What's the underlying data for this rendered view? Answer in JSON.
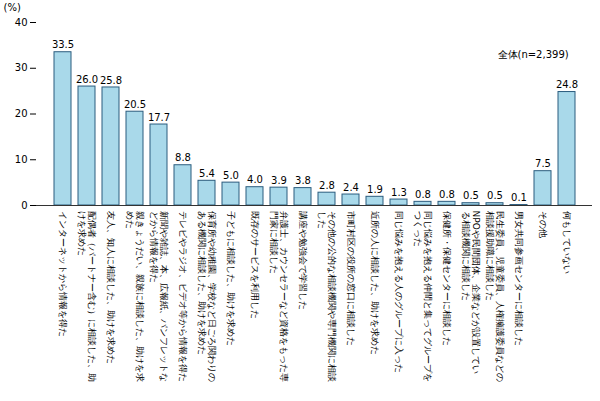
{
  "chart_data": {
    "type": "bar",
    "ylabel": "(%)",
    "annotations": [
      "全体(n=2,399)"
    ],
    "categories": [
      "インターネットから情報を得た",
      "配偶者（パートナー含む）に相談した、助けを求めた",
      "友人、知人に相談した、助けを求めた",
      "親きょうだい、親族に相談した、助けを求めた",
      "新聞や雑誌、本、広報紙、パンフレットなどから情報を得た",
      "テレビやラジオ、ビデオ等から情報を得た",
      "保育所や幼稚園、学校など日ごろ関わりのある機関に相談した、助けを求めた",
      "子どもに相談した、助けを求めた",
      "既存のサービスを利用した",
      "弁護士、カウンセラーなど資格をもった専門家に相談した",
      "講座や勉強会で学習した",
      "その他の公的な相談機関や専門機関に相談した",
      "市町村区の役所の窓口に相談した",
      "近所の人に相談した、助けを求めた",
      "同じ悩みを抱える人のグループに入った",
      "同じ悩みを抱える仲間と集ってグループをつくった",
      "保健所・保健センターに相談した",
      "NPOや民間団体、企業などが設置している相談機関に相談した",
      "民生委員、児童委員、人権擁護委員などの相談援助職に相談した",
      "男女共同参画センターに相談した",
      "その他",
      "何もしていない"
    ],
    "values": [
      33.5,
      26.0,
      25.8,
      20.5,
      17.7,
      8.8,
      5.4,
      5.0,
      4.0,
      3.9,
      3.8,
      2.8,
      2.4,
      1.9,
      1.3,
      0.8,
      0.8,
      0.5,
      0.5,
      0.1,
      7.5,
      24.8
    ],
    "value_labels": [
      "33.5",
      "26.0",
      "25.8",
      "20.5",
      "17.7",
      "8.8",
      "5.4",
      "5.0",
      "4.0",
      "3.9",
      "3.8",
      "2.8",
      "2.4",
      "1.9",
      "1.3",
      "0.8",
      "0.8",
      "0.5",
      "0.5",
      "0.1",
      "7.5",
      "24.8"
    ],
    "color": "#a9d9ea",
    "ylim": [
      0,
      40
    ],
    "yticks": [
      0,
      10,
      20,
      30,
      40
    ],
    "grid": false,
    "data_labels": true
  }
}
